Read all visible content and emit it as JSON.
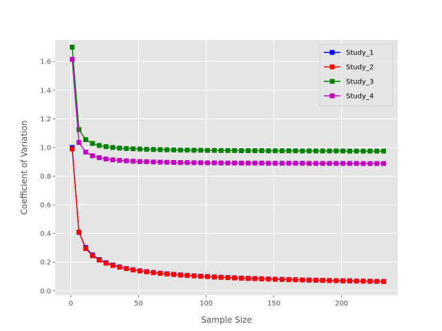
{
  "chart_data": {
    "type": "line",
    "title": "",
    "xlabel": "Sample Size",
    "ylabel": "Coefficient of Variation",
    "xlim": [
      -11.5,
      241.5
    ],
    "ylim": [
      -0.03,
      1.75
    ],
    "xticks": [
      0,
      50,
      100,
      150,
      200
    ],
    "yticks": [
      0.0,
      0.2,
      0.4,
      0.6,
      0.8,
      1.0,
      1.2,
      1.4,
      1.6
    ],
    "ytick_labels": [
      "0.0",
      "0.2",
      "0.4",
      "0.6",
      "0.8",
      "1.0",
      "1.2",
      "1.4",
      "1.6"
    ],
    "grid": true,
    "legend_position": "top-right",
    "marker": "square",
    "x": [
      1,
      6,
      11,
      16,
      21,
      26,
      31,
      36,
      41,
      46,
      51,
      56,
      61,
      66,
      71,
      76,
      81,
      86,
      91,
      96,
      101,
      106,
      111,
      116,
      121,
      126,
      131,
      136,
      141,
      146,
      151,
      156,
      161,
      166,
      171,
      176,
      181,
      186,
      191,
      196,
      201,
      206,
      211,
      216,
      221,
      226,
      231
    ],
    "series": [
      {
        "name": "Study_1",
        "color": "#0000ff",
        "values": [
          1.0,
          0.408,
          0.302,
          0.25,
          0.218,
          0.196,
          0.18,
          0.167,
          0.156,
          0.147,
          0.14,
          0.134,
          0.128,
          0.123,
          0.119,
          0.115,
          0.111,
          0.108,
          0.105,
          0.102,
          0.1,
          0.097,
          0.095,
          0.093,
          0.091,
          0.089,
          0.087,
          0.086,
          0.084,
          0.083,
          0.081,
          0.08,
          0.079,
          0.078,
          0.076,
          0.075,
          0.074,
          0.073,
          0.072,
          0.071,
          0.07,
          0.07,
          0.069,
          0.068,
          0.067,
          0.066,
          0.066
        ]
      },
      {
        "name": "Study_2",
        "color": "#ff0000",
        "values": [
          0.99,
          0.41,
          0.295,
          0.245,
          0.215,
          0.193,
          0.177,
          0.165,
          0.155,
          0.146,
          0.139,
          0.133,
          0.127,
          0.122,
          0.118,
          0.114,
          0.11,
          0.107,
          0.104,
          0.101,
          0.099,
          0.096,
          0.094,
          0.092,
          0.09,
          0.088,
          0.087,
          0.085,
          0.084,
          0.082,
          0.081,
          0.08,
          0.078,
          0.077,
          0.076,
          0.075,
          0.074,
          0.073,
          0.072,
          0.071,
          0.07,
          0.069,
          0.068,
          0.068,
          0.067,
          0.066,
          0.065
        ]
      },
      {
        "name": "Study_3",
        "color": "#008000",
        "values": [
          1.7,
          1.125,
          1.055,
          1.028,
          1.014,
          1.006,
          1.0,
          0.996,
          0.993,
          0.991,
          0.989,
          0.987,
          0.986,
          0.985,
          0.984,
          0.983,
          0.982,
          0.982,
          0.981,
          0.981,
          0.98,
          0.98,
          0.979,
          0.979,
          0.979,
          0.978,
          0.978,
          0.978,
          0.978,
          0.977,
          0.977,
          0.977,
          0.977,
          0.977,
          0.976,
          0.976,
          0.976,
          0.976,
          0.976,
          0.976,
          0.976,
          0.975,
          0.975,
          0.975,
          0.975,
          0.975,
          0.975
        ]
      },
      {
        "name": "Study_4",
        "color": "#bf00bf",
        "values": [
          1.615,
          1.035,
          0.968,
          0.942,
          0.929,
          0.92,
          0.914,
          0.91,
          0.907,
          0.904,
          0.902,
          0.901,
          0.899,
          0.898,
          0.897,
          0.896,
          0.895,
          0.895,
          0.894,
          0.894,
          0.893,
          0.893,
          0.892,
          0.892,
          0.892,
          0.891,
          0.891,
          0.891,
          0.891,
          0.89,
          0.89,
          0.89,
          0.89,
          0.89,
          0.89,
          0.889,
          0.889,
          0.889,
          0.889,
          0.889,
          0.889,
          0.889,
          0.889,
          0.888,
          0.888,
          0.888,
          0.888
        ]
      }
    ]
  }
}
